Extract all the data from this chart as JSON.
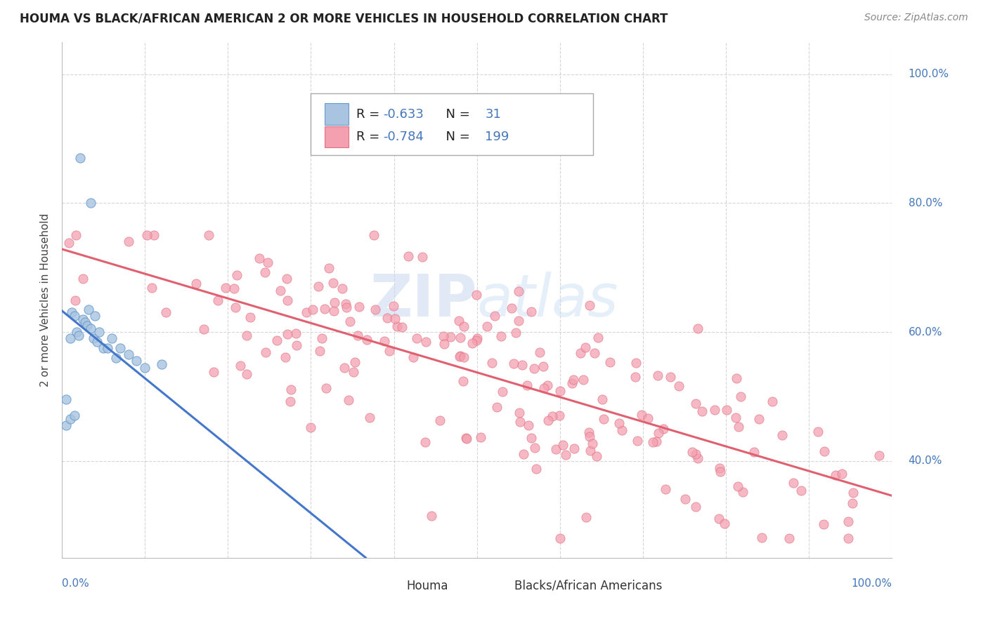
{
  "title": "HOUMA VS BLACK/AFRICAN AMERICAN 2 OR MORE VEHICLES IN HOUSEHOLD CORRELATION CHART",
  "source": "Source: ZipAtlas.com",
  "ylabel": "2 or more Vehicles in Household",
  "houma_R": -0.633,
  "houma_N": 31,
  "black_R": -0.784,
  "black_N": 199,
  "houma_color": "#a8c4e0",
  "houma_edge_color": "#6699cc",
  "black_color": "#f4a0b0",
  "black_edge_color": "#e07080",
  "houma_line_color": "#4477cc",
  "black_line_color": "#e06070",
  "background_color": "#ffffff",
  "grid_color": "#cccccc",
  "label_color": "#4477bb",
  "xlim": [
    0.0,
    1.0
  ],
  "ylim": [
    0.25,
    1.05
  ],
  "ytick_positions": [
    0.4,
    0.6,
    0.8,
    1.0
  ],
  "ytick_labels": [
    "40.0%",
    "60.0%",
    "80.0%",
    "100.0%"
  ],
  "watermark_text": "ZIPatlas",
  "watermark_color": "#d0dff0",
  "legend_label_houma": "Houma",
  "legend_label_black": "Blacks/African Americans"
}
